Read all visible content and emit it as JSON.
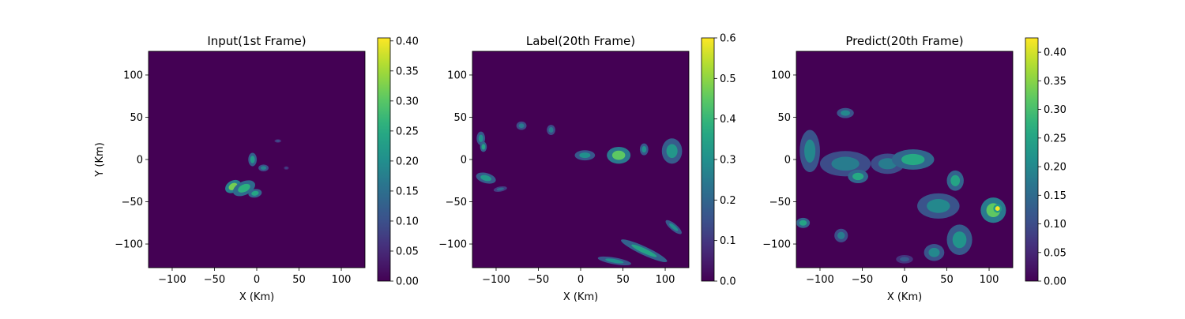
{
  "chart_data": [
    {
      "type": "heatmap",
      "title": "Input(1st Frame)",
      "xlabel": "X (Km)",
      "ylabel": "Y (Km)",
      "xlim": [
        -128,
        128
      ],
      "ylim": [
        -128,
        128
      ],
      "xticks": [
        "−100",
        "−50",
        "0",
        "50",
        "100"
      ],
      "yticks": [
        "−100",
        "−50",
        "0",
        "50",
        "100"
      ],
      "colormap": "viridis",
      "colorbar": {
        "range": [
          0,
          0.405
        ],
        "ticks": [
          "0.00",
          "0.05",
          "0.10",
          "0.15",
          "0.20",
          "0.25",
          "0.30",
          "0.35",
          "0.40"
        ]
      },
      "echoes": [
        {
          "x": -28,
          "y": -32,
          "rx": 10,
          "ry": 7,
          "rot": 30,
          "value": 0.32
        },
        {
          "x": -15,
          "y": -34,
          "rx": 14,
          "ry": 8,
          "rot": 25,
          "value": 0.26
        },
        {
          "x": -2,
          "y": -40,
          "rx": 8,
          "ry": 5,
          "rot": 10,
          "value": 0.24
        },
        {
          "x": -5,
          "y": 0,
          "rx": 5,
          "ry": 8,
          "rot": 0,
          "value": 0.22
        },
        {
          "x": 8,
          "y": -10,
          "rx": 6,
          "ry": 4,
          "rot": 0,
          "value": 0.18
        },
        {
          "x": 25,
          "y": 22,
          "rx": 4,
          "ry": 2,
          "rot": 0,
          "value": 0.1
        },
        {
          "x": 35,
          "y": -10,
          "rx": 3,
          "ry": 2,
          "rot": 0,
          "value": 0.08
        }
      ]
    },
    {
      "type": "heatmap",
      "title": "Label(20th Frame)",
      "xlabel": "X (Km)",
      "ylabel": "",
      "xlim": [
        -128,
        128
      ],
      "ylim": [
        -128,
        128
      ],
      "xticks": [
        "−100",
        "−50",
        "0",
        "50",
        "100"
      ],
      "yticks": [
        "−100",
        "−50",
        "0",
        "50",
        "100"
      ],
      "colormap": "viridis",
      "colorbar": {
        "range": [
          0,
          0.6
        ],
        "ticks": [
          "0.0",
          "0.1",
          "0.2",
          "0.3",
          "0.4",
          "0.5",
          "0.6"
        ]
      },
      "echoes": [
        {
          "x": -118,
          "y": 25,
          "rx": 5,
          "ry": 8,
          "rot": 0,
          "value": 0.3
        },
        {
          "x": -115,
          "y": 15,
          "rx": 4,
          "ry": 6,
          "rot": 0,
          "value": 0.35
        },
        {
          "x": -112,
          "y": -22,
          "rx": 12,
          "ry": 6,
          "rot": -15,
          "value": 0.32
        },
        {
          "x": -95,
          "y": -35,
          "rx": 8,
          "ry": 3,
          "rot": 10,
          "value": 0.2
        },
        {
          "x": -70,
          "y": 40,
          "rx": 6,
          "ry": 5,
          "rot": 0,
          "value": 0.25
        },
        {
          "x": -35,
          "y": 35,
          "rx": 5,
          "ry": 6,
          "rot": 0,
          "value": 0.25
        },
        {
          "x": 5,
          "y": 5,
          "rx": 12,
          "ry": 6,
          "rot": 0,
          "value": 0.3
        },
        {
          "x": 45,
          "y": 5,
          "rx": 14,
          "ry": 10,
          "rot": 0,
          "value": 0.45
        },
        {
          "x": 75,
          "y": 12,
          "rx": 5,
          "ry": 7,
          "rot": 0,
          "value": 0.3
        },
        {
          "x": 108,
          "y": 10,
          "rx": 12,
          "ry": 15,
          "rot": 0,
          "value": 0.32
        },
        {
          "x": 75,
          "y": -108,
          "rx": 30,
          "ry": 5,
          "rot": -25,
          "value": 0.35
        },
        {
          "x": 40,
          "y": -120,
          "rx": 20,
          "ry": 4,
          "rot": -10,
          "value": 0.3
        },
        {
          "x": 110,
          "y": -80,
          "rx": 12,
          "ry": 4,
          "rot": -40,
          "value": 0.3
        }
      ]
    },
    {
      "type": "heatmap",
      "title": "Predict(20th Frame)",
      "xlabel": "X (Km)",
      "ylabel": "",
      "xlim": [
        -128,
        128
      ],
      "ylim": [
        -128,
        128
      ],
      "xticks": [
        "−100",
        "−50",
        "0",
        "50",
        "100"
      ],
      "yticks": [
        "−100",
        "−50",
        "0",
        "50",
        "100"
      ],
      "colormap": "viridis",
      "colorbar": {
        "range": [
          0,
          0.425
        ],
        "ticks": [
          "0.00",
          "0.05",
          "0.10",
          "0.15",
          "0.20",
          "0.25",
          "0.30",
          "0.35",
          "0.40"
        ]
      },
      "echoes": [
        {
          "x": -112,
          "y": 10,
          "rx": 12,
          "ry": 25,
          "rot": 0,
          "value": 0.2
        },
        {
          "x": -70,
          "y": -5,
          "rx": 30,
          "ry": 15,
          "rot": 0,
          "value": 0.18
        },
        {
          "x": -55,
          "y": -20,
          "rx": 12,
          "ry": 8,
          "rot": 0,
          "value": 0.26
        },
        {
          "x": -20,
          "y": -5,
          "rx": 20,
          "ry": 12,
          "rot": 0,
          "value": 0.18
        },
        {
          "x": 10,
          "y": 0,
          "rx": 25,
          "ry": 12,
          "rot": 0,
          "value": 0.26
        },
        {
          "x": -70,
          "y": 55,
          "rx": 10,
          "ry": 6,
          "rot": 0,
          "value": 0.2
        },
        {
          "x": 40,
          "y": -55,
          "rx": 25,
          "ry": 15,
          "rot": 0,
          "value": 0.2
        },
        {
          "x": 60,
          "y": -25,
          "rx": 10,
          "ry": 12,
          "rot": 0,
          "value": 0.25
        },
        {
          "x": 105,
          "y": -60,
          "rx": 15,
          "ry": 15,
          "rot": 0,
          "value": 0.32
        },
        {
          "x": 110,
          "y": -58,
          "rx": 5,
          "ry": 5,
          "rot": 0,
          "value": 0.42
        },
        {
          "x": 65,
          "y": -95,
          "rx": 15,
          "ry": 18,
          "rot": 0,
          "value": 0.22
        },
        {
          "x": 35,
          "y": -110,
          "rx": 12,
          "ry": 10,
          "rot": 0,
          "value": 0.2
        },
        {
          "x": -75,
          "y": -90,
          "rx": 8,
          "ry": 8,
          "rot": 0,
          "value": 0.18
        },
        {
          "x": -120,
          "y": -75,
          "rx": 8,
          "ry": 6,
          "rot": 0,
          "value": 0.25
        },
        {
          "x": 0,
          "y": -118,
          "rx": 10,
          "ry": 5,
          "rot": 0,
          "value": 0.12
        }
      ]
    }
  ]
}
